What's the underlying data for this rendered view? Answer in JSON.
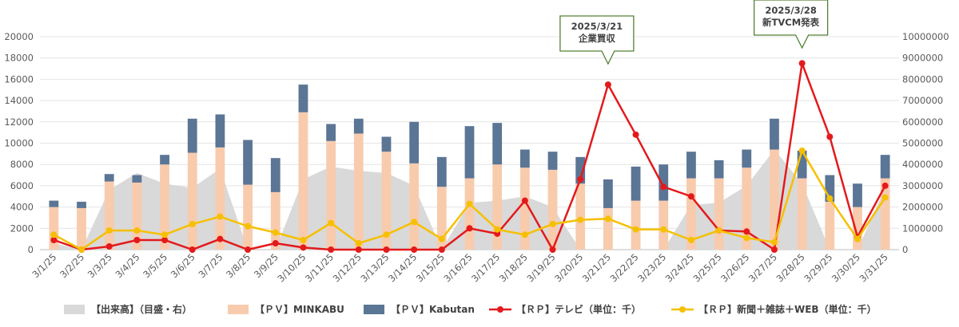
{
  "chart_data": {
    "type": "bar",
    "categories": [
      "3/1/25",
      "3/2/25",
      "3/3/25",
      "3/4/25",
      "3/5/25",
      "3/6/25",
      "3/7/25",
      "3/8/25",
      "3/9/25",
      "3/10/25",
      "3/11/25",
      "3/12/25",
      "3/13/25",
      "3/14/25",
      "3/15/25",
      "3/16/25",
      "3/17/25",
      "3/18/25",
      "3/19/25",
      "3/20/25",
      "3/21/25",
      "3/22/25",
      "3/23/25",
      "3/24/25",
      "3/25/25",
      "3/26/25",
      "3/27/25",
      "3/28/25",
      "3/29/25",
      "3/30/25",
      "3/31/25"
    ],
    "left_axis": {
      "ylim": [
        0,
        20000
      ],
      "ticks": [
        "0",
        "2000",
        "4000",
        "6000",
        "8000",
        "10000",
        "12000",
        "14000",
        "16000",
        "18000",
        "20000"
      ]
    },
    "right_axis": {
      "ylim": [
        0,
        10000000
      ],
      "ticks": [
        "0",
        "1000000",
        "2000000",
        "3000000",
        "4000000",
        "5000000",
        "6000000",
        "7000000",
        "8000000",
        "9000000",
        "10000000"
      ]
    },
    "grid": true,
    "legend_position": "bottom",
    "series": [
      {
        "name": "【出来高】（目盛・右）",
        "type": "area",
        "axis": "right",
        "color": "#d9d9d9",
        "values": [
          300000,
          0,
          2800000,
          3600000,
          3100000,
          2900000,
          3800000,
          0,
          0,
          3300000,
          3900000,
          3700000,
          3600000,
          3000000,
          0,
          2200000,
          2300000,
          2500000,
          2000000,
          0,
          0,
          0,
          0,
          2100000,
          2200000,
          3000000,
          4700000,
          3100000,
          0,
          0,
          2900000
        ]
      },
      {
        "name": "【ＰＶ】MINKABU",
        "type": "bar",
        "axis": "left",
        "stack": "pv",
        "color": "#f8cbad",
        "values": [
          4000,
          3900,
          6400,
          6300,
          8000,
          9100,
          9600,
          6100,
          5400,
          12900,
          10200,
          10900,
          9200,
          8100,
          5900,
          6700,
          8000,
          7700,
          7500,
          6200,
          3900,
          4600,
          4600,
          6700,
          6700,
          7700,
          9400,
          6700,
          4500,
          4000,
          6700
        ]
      },
      {
        "name": "【ＰＶ】Kabutan",
        "type": "bar",
        "axis": "left",
        "stack": "pv",
        "color": "#5b7595",
        "values": [
          600,
          600,
          700,
          700,
          900,
          3200,
          3100,
          4200,
          3200,
          2600,
          1600,
          1400,
          1400,
          3900,
          2800,
          4900,
          3900,
          1700,
          1700,
          2500,
          2700,
          3200,
          3400,
          2500,
          1700,
          1700,
          2900,
          2600,
          2500,
          2200,
          2200
        ]
      },
      {
        "name": "【ＲＰ】テレビ（単位：千）",
        "type": "line",
        "axis": "left",
        "color": "#e31a1c",
        "values": [
          900,
          0,
          300,
          900,
          900,
          0,
          1000,
          0,
          600,
          200,
          0,
          0,
          0,
          0,
          0,
          2000,
          1500,
          4600,
          0,
          6600,
          15500,
          10800,
          5900,
          5000,
          1800,
          1700,
          0,
          17500,
          10600,
          1200,
          6000
        ]
      },
      {
        "name": "【ＲＰ】新聞＋雑誌＋WEB（単位：千）",
        "type": "line",
        "axis": "left",
        "color": "#f5c000",
        "values": [
          1400,
          0,
          1800,
          1800,
          1400,
          2400,
          3100,
          2200,
          1600,
          900,
          2500,
          600,
          1400,
          2600,
          1000,
          4300,
          1900,
          1400,
          2400,
          2800,
          2900,
          1900,
          1900,
          900,
          1800,
          1100,
          700,
          9300,
          4800,
          1000,
          4900
        ]
      }
    ],
    "annotations": [
      {
        "date": "3/21/25",
        "lines": [
          "2025/3/21",
          "企業買収"
        ]
      },
      {
        "date": "3/28/25",
        "lines": [
          "2025/3/28",
          "新TVCM発表"
        ]
      }
    ]
  }
}
